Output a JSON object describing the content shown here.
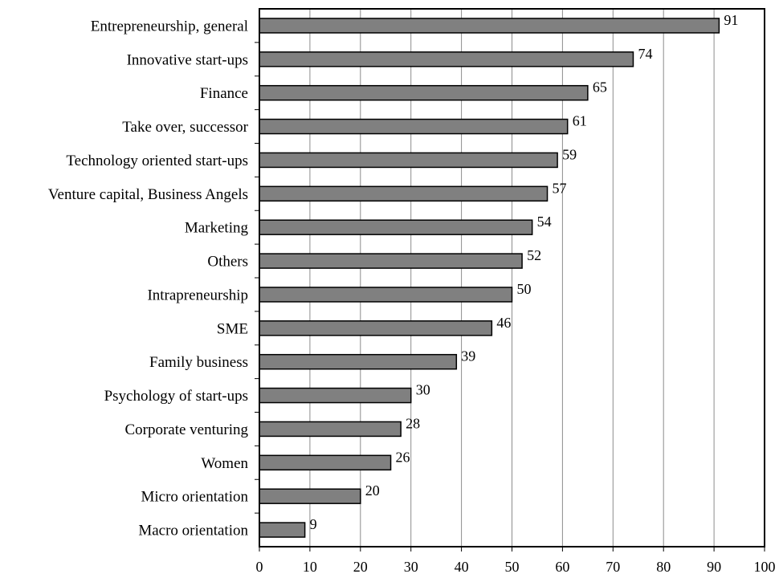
{
  "chart_data": {
    "type": "bar",
    "orientation": "horizontal",
    "categories": [
      "Entrepreneurship, general",
      "Innovative start-ups",
      "Finance",
      "Take over, successor",
      "Technology oriented start-ups",
      "Venture capital, Business Angels",
      "Marketing",
      "Others",
      "Intrapreneurship",
      "SME",
      "Family business",
      "Psychology of start-ups",
      "Corporate venturing",
      "Women",
      "Micro orientation",
      "Macro orientation"
    ],
    "values": [
      91,
      74,
      65,
      61,
      59,
      57,
      54,
      52,
      50,
      46,
      39,
      30,
      28,
      26,
      20,
      9
    ],
    "xlim": [
      0,
      100
    ],
    "xticks": [
      0,
      10,
      20,
      30,
      40,
      50,
      60,
      70,
      80,
      90,
      100
    ],
    "grid": "vertical",
    "colors": {
      "bar": "#808080",
      "bar_edge": "#000000",
      "grid": "#8c8c8c"
    }
  }
}
